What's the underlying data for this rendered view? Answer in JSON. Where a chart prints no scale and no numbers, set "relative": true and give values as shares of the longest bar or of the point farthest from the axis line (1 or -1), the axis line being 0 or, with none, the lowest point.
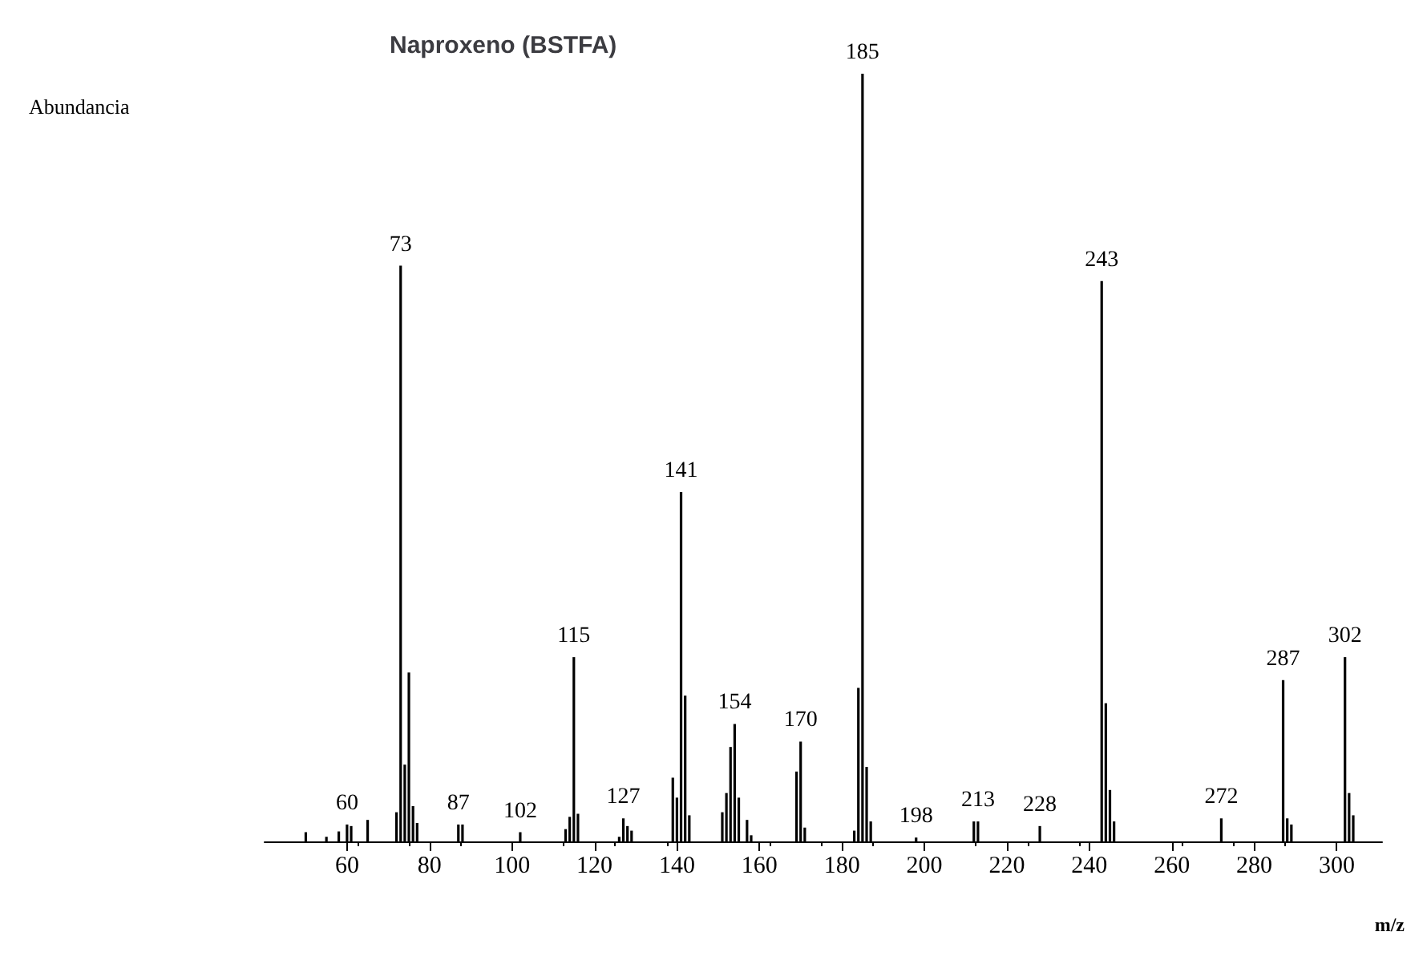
{
  "chart_data": {
    "type": "bar",
    "title": "Naproxeno (BSTFA)",
    "xlabel": "m/z",
    "relative": true,
    "color": "#000000",
    "x": [
      50,
      55,
      58,
      60,
      61,
      65,
      72,
      73,
      74,
      75,
      76,
      77,
      87,
      88,
      102,
      113,
      114,
      115,
      116,
      126,
      127,
      128,
      129,
      139,
      140,
      141,
      142,
      143,
      151,
      152,
      153,
      154,
      155,
      157,
      158,
      169,
      170,
      171,
      183,
      184,
      185,
      186,
      187,
      198,
      212,
      213,
      228,
      243,
      244,
      245,
      246,
      272,
      287,
      288,
      289,
      302,
      303,
      304
    ],
    "values": [
      0.012,
      0.006,
      0.013,
      0.022,
      0.02,
      0.028,
      0.038,
      0.75,
      0.1,
      0.22,
      0.046,
      0.024,
      0.022,
      0.022,
      0.012,
      0.016,
      0.032,
      0.24,
      0.036,
      0.006,
      0.03,
      0.02,
      0.014,
      0.083,
      0.057,
      0.455,
      0.19,
      0.034,
      0.038,
      0.063,
      0.123,
      0.153,
      0.057,
      0.028,
      0.008,
      0.091,
      0.13,
      0.018,
      0.014,
      0.2,
      1,
      0.097,
      0.026,
      0.005,
      0.026,
      0.026,
      0.02,
      0.73,
      0.18,
      0.067,
      0.026,
      0.03,
      0.21,
      0.03,
      0.022,
      0.24,
      0.063,
      0.034
    ],
    "xlim": [
      40,
      311
    ],
    "xticks": [
      60,
      80,
      100,
      120,
      140,
      160,
      180,
      200,
      220,
      240,
      260,
      280,
      300
    ],
    "annotations": [
      "Abundancia",
      {
        "text": "60",
        "x": 60,
        "y": 0.022
      },
      {
        "text": "73",
        "x": 73,
        "y": 0.75
      },
      {
        "text": "87",
        "x": 87,
        "y": 0.022
      },
      {
        "text": "102",
        "x": 102,
        "y": 0.012
      },
      {
        "text": "115",
        "x": 115,
        "y": 0.24
      },
      {
        "text": "127",
        "x": 127,
        "y": 0.03
      },
      {
        "text": "141",
        "x": 141,
        "y": 0.455
      },
      {
        "text": "154",
        "x": 154,
        "y": 0.153
      },
      {
        "text": "170",
        "x": 170,
        "y": 0.13
      },
      {
        "text": "185",
        "x": 185,
        "y": 1
      },
      {
        "text": "198",
        "x": 198,
        "y": 0.005
      },
      {
        "text": "213",
        "x": 213,
        "y": 0.026
      },
      {
        "text": "228",
        "x": 228,
        "y": 0.02
      },
      {
        "text": "243",
        "x": 243,
        "y": 0.73
      },
      {
        "text": "272",
        "x": 272,
        "y": 0.03
      },
      {
        "text": "287",
        "x": 287,
        "y": 0.21
      },
      {
        "text": "302",
        "x": 302,
        "y": 0.24
      }
    ]
  }
}
